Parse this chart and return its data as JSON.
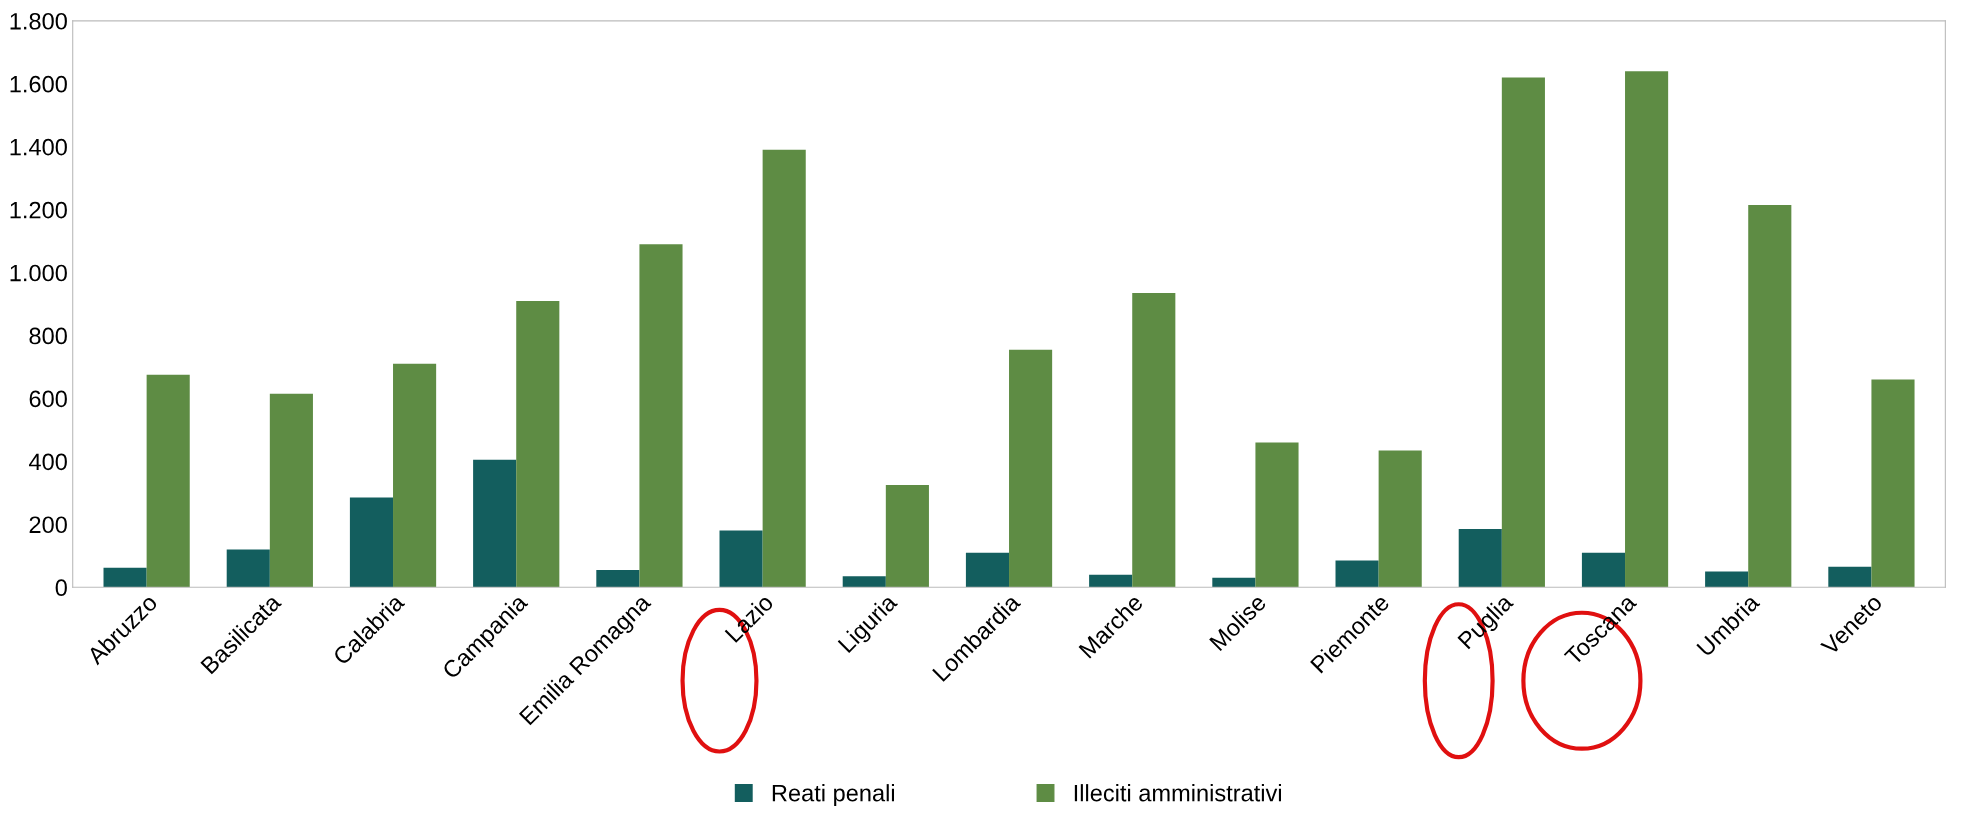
{
  "chart_data": {
    "type": "bar",
    "categories": [
      "Abruzzo",
      "Basilicata",
      "Calabria",
      "Campania",
      "Emilia Romagna",
      "Lazio",
      "Liguria",
      "Lombardia",
      "Marche",
      "Molise",
      "Piemonte",
      "Puglia",
      "Toscana",
      "Umbria",
      "Veneto"
    ],
    "series": [
      {
        "name": "Reati penali",
        "color": "#135e5e",
        "values": [
          62,
          120,
          285,
          405,
          55,
          180,
          35,
          110,
          40,
          30,
          85,
          185,
          110,
          50,
          65
        ]
      },
      {
        "name": "Illeciti amministrativi",
        "color": "#5e8c44",
        "values": [
          675,
          615,
          710,
          910,
          1090,
          1390,
          325,
          755,
          935,
          460,
          435,
          1620,
          1640,
          1215,
          660
        ]
      }
    ],
    "ylim": [
      0,
      1800
    ],
    "yticks": [
      0,
      200,
      400,
      600,
      800,
      {
        "value": 1000,
        "label": "1.000"
      },
      {
        "value": 1200,
        "label": "1.200"
      },
      {
        "value": 1400,
        "label": "1.400"
      },
      {
        "value": 1600,
        "label": "1.600"
      },
      {
        "value": 1800,
        "label": "1.800"
      }
    ],
    "grid": false,
    "legend": "bottom"
  }
}
